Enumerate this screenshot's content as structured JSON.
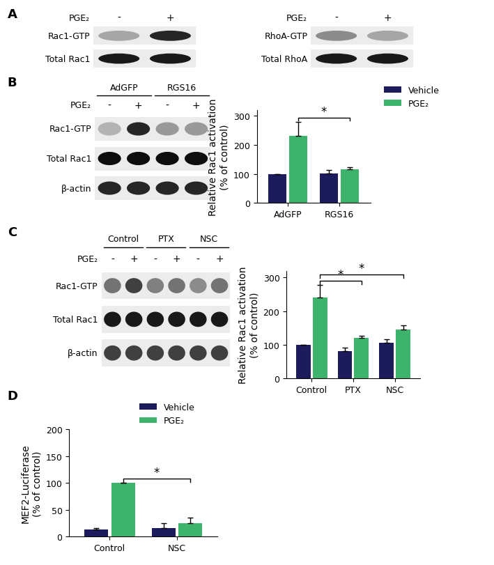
{
  "panel_labels": [
    "A",
    "B",
    "C",
    "D"
  ],
  "blots": [
    {
      "panel": "A",
      "treatment": {
        "label": "PGE₂",
        "signs": [
          "-",
          "+"
        ]
      },
      "groups": [],
      "rows": [
        {
          "label": "Rac1-GTP",
          "intensity": [
            0.35,
            0.85
          ]
        },
        {
          "label": "Total Rac1",
          "intensity": [
            0.9,
            0.9
          ]
        }
      ]
    },
    {
      "panel": "A",
      "treatment": {
        "label": "PGE₂",
        "signs": [
          "-",
          "+"
        ]
      },
      "groups": [],
      "rows": [
        {
          "label": "RhoA-GTP",
          "intensity": [
            0.45,
            0.35
          ]
        },
        {
          "label": "Total RhoA",
          "intensity": [
            0.9,
            0.9
          ]
        }
      ]
    },
    {
      "panel": "B",
      "treatment": {
        "label": "PGE₂",
        "signs": [
          "-",
          "+",
          "-",
          "+"
        ]
      },
      "groups": [
        {
          "label": "AdGFP",
          "lanes": 2
        },
        {
          "label": "RGS16",
          "lanes": 2
        }
      ],
      "rows": [
        {
          "label": "Rac1-GTP",
          "intensity": [
            0.3,
            0.85,
            0.4,
            0.4
          ]
        },
        {
          "label": "Total Rac1",
          "intensity": [
            0.95,
            0.95,
            0.95,
            0.95
          ]
        },
        {
          "label": "β-actin",
          "intensity": [
            0.85,
            0.85,
            0.85,
            0.85
          ]
        }
      ]
    },
    {
      "panel": "C",
      "treatment": {
        "label": "PGE₂",
        "signs": [
          "-",
          "+",
          "-",
          "+",
          "-",
          "+"
        ]
      },
      "groups": [
        {
          "label": "Control",
          "lanes": 2
        },
        {
          "label": "PTX",
          "lanes": 2
        },
        {
          "label": "NSC",
          "lanes": 2
        }
      ],
      "rows": [
        {
          "label": "Rac1-GTP",
          "intensity": [
            0.55,
            0.75,
            0.5,
            0.55,
            0.45,
            0.55
          ]
        },
        {
          "label": "Total Rac1",
          "intensity": [
            0.9,
            0.9,
            0.9,
            0.9,
            0.9,
            0.9
          ]
        },
        {
          "label": "β-actin",
          "intensity": [
            0.75,
            0.75,
            0.75,
            0.75,
            0.75,
            0.75
          ]
        }
      ]
    }
  ],
  "chart_data": [
    {
      "panel": "B",
      "type": "bar",
      "categories": [
        "AdGFP",
        "RGS16"
      ],
      "ylabel": "Relative Rac1 activation\n(% of control)",
      "ylim": [
        0,
        320
      ],
      "yticks": [
        0,
        100,
        200,
        300
      ],
      "legend": "upper left",
      "series": [
        {
          "name": "Vehicle",
          "color": "#1c1c5c",
          "values": [
            100,
            102
          ],
          "errors": [
            0,
            12
          ]
        },
        {
          "name": "PGE₂",
          "color": "#3db36b",
          "values": [
            232,
            117
          ],
          "errors": [
            48,
            6
          ]
        }
      ],
      "significance": [
        {
          "from": [
            "AdGFP",
            "PGE₂"
          ],
          "to": [
            "RGS16",
            "PGE₂"
          ],
          "label": "*"
        }
      ]
    },
    {
      "panel": "C",
      "type": "bar",
      "categories": [
        "Control",
        "PTX",
        "NSC"
      ],
      "ylabel": "Relative Rac1 activation\n(% of control)",
      "ylim": [
        0,
        320
      ],
      "yticks": [
        0,
        100,
        200,
        300
      ],
      "series": [
        {
          "name": "Vehicle",
          "color": "#1c1c5c",
          "values": [
            100,
            82,
            106
          ],
          "errors": [
            0,
            10,
            10
          ]
        },
        {
          "name": "PGE₂",
          "color": "#3db36b",
          "values": [
            240,
            120,
            145
          ],
          "errors": [
            37,
            7,
            13
          ]
        }
      ],
      "significance": [
        {
          "from": [
            "Control",
            "PGE₂"
          ],
          "to": [
            "PTX",
            "PGE₂"
          ],
          "label": "*"
        },
        {
          "from": [
            "Control",
            "PGE₂"
          ],
          "to": [
            "NSC",
            "PGE₂"
          ],
          "label": "*"
        }
      ]
    },
    {
      "panel": "D",
      "type": "bar",
      "categories": [
        "Control",
        "NSC"
      ],
      "ylabel": "MEF2-Luciferase\n(% of control)",
      "ylim": [
        0,
        200
      ],
      "yticks": [
        0,
        50,
        100,
        150,
        200
      ],
      "legend": "upper left",
      "series": [
        {
          "name": "Vehicle",
          "color": "#1c1c5c",
          "values": [
            13,
            16
          ],
          "errors": [
            3,
            9
          ]
        },
        {
          "name": "PGE₂",
          "color": "#3db36b",
          "values": [
            100,
            25
          ],
          "errors": [
            0,
            10
          ]
        }
      ],
      "significance": [
        {
          "from": [
            "Control",
            "PGE₂"
          ],
          "to": [
            "NSC",
            "PGE₂"
          ],
          "label": "*"
        }
      ]
    }
  ]
}
